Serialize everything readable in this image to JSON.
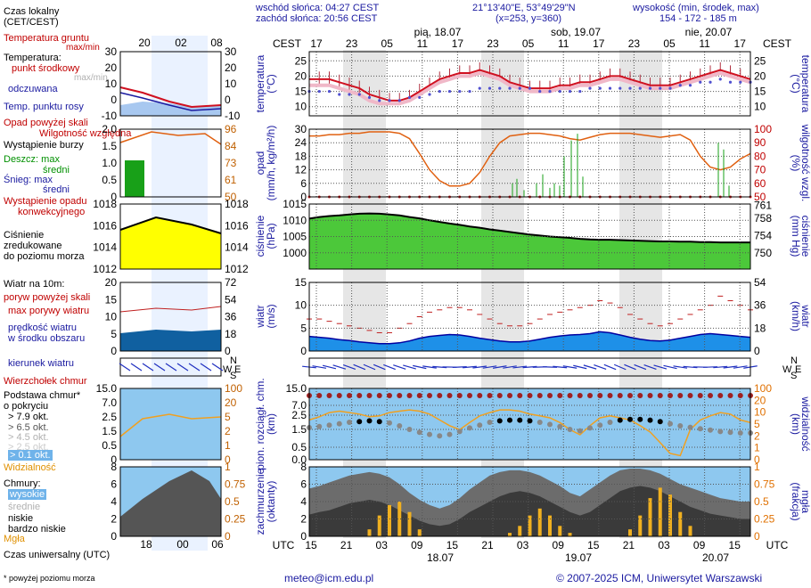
{
  "header": {
    "sunrise": "wschód słońca: 04:27 CEST",
    "sunset": "zachód słońca: 20:56 CEST",
    "coords": "21°13'40\"E, 53°49'29\"N",
    "grid": "(x=253, y=360)",
    "elev_label": "wysokość (min, środek, max)",
    "elev_values": "154 - 172 - 185 m"
  },
  "legend": {
    "local_time": "Czas lokalny",
    "local_time_sub": "(CET/CEST)",
    "soil_temp": "Temperatura gruntu",
    "soil_temp_sub": "max/min",
    "temperature": "Temperatura:",
    "center_point": "punkt środkowy",
    "maxmin": "max/min",
    "perceived": "odczuwana",
    "dew_point": "Temp. punktu rosy",
    "rain_over_scale": "Opad powyżej skali",
    "humidity": "Wilgotność względna",
    "storm": "Wystąpienie burzy",
    "rain_max": "Deszcz: max",
    "rain_mean": "średni",
    "snow_max": "Śnieg:  max",
    "snow_mean": "średni",
    "convective": "Wystąpienie opadu",
    "convective2": "konwekcyjnego",
    "pressure1": "Ciśnienie",
    "pressure2": "zredukowane",
    "pressure3": "do poziomu morza",
    "wind_at": "Wiatr na 10m:",
    "gust_over": "poryw powyżej skali",
    "gust_max": "max porywy wiatru",
    "wind_speed1": "prędkość wiatru",
    "wind_speed2": "w środku obszaru",
    "wind_dir": "kierunek wiatru",
    "cloud_top": "Wierzchołek chmur",
    "cloud_base": "Podstawa chmur*",
    "cloud_base2": "o pokryciu",
    "okt79": "> 7.9 okt.",
    "okt65": "> 6.5 okt.",
    "okt45": "> 4.5 okt.",
    "okt25": "> 2.5 okt.",
    "okt01": "> 0.1 okt.",
    "visibility": "Widzialność",
    "clouds": "Chmury:",
    "high": "wysokie",
    "mid": "średnie",
    "low": "niskie",
    "very_low": "bardzo niskie",
    "fog": "Mgła",
    "utc": "Czas uniwersalny (UTC)",
    "footnote": "* powyżej poziomu morza"
  },
  "footer": {
    "email": "meteo@icm.edu.pl",
    "copyright": "© 2007-2025 ICM, Uniwersytet Warszawski"
  },
  "axis_labels": {
    "cest": "CEST",
    "utc": "UTC",
    "temp_l": "temperatura",
    "temp_unit": "(°C)",
    "rain_l": "opad",
    "rain_unit": "(mm/h, kg/m²/h)",
    "hum_r": "wilgotność wzgl.",
    "hum_unit": "(%)",
    "pres_l": "ciśnienie",
    "pres_unit": "(hPa)",
    "pres_r": "ciśnienie",
    "pres_r_unit": "(mm Hg)",
    "wind_l": "wiatr",
    "wind_unit": "(m/s)",
    "wind_r": "wiatr",
    "wind_r_unit": "(km/h)",
    "cloud_l": "pion. rozciągł. chm.",
    "cloud_unit": "(km)",
    "vis_r": "widzialność",
    "vis_unit": "(km)",
    "cov_l": "zachmurzenie",
    "cov_unit": "(oktanty)",
    "fog_r": "mgła",
    "fog_unit": "(frakcja)",
    "compass_w": "W",
    "compass_n": "N",
    "compass_s": "S",
    "compass_e": "E"
  },
  "chart_data": {
    "type": "line",
    "top_hours": [
      "17",
      "23",
      "05",
      "11",
      "17",
      "23",
      "05",
      "11",
      "17",
      "23",
      "05",
      "11",
      "17"
    ],
    "days_top": [
      "pią, 18.07",
      "sob, 19.07",
      "nie, 20.07"
    ],
    "bottom_hours": [
      "15",
      "21",
      "03",
      "09",
      "15",
      "21",
      "03",
      "09",
      "15",
      "21",
      "03",
      "09",
      "15"
    ],
    "days_bottom": [
      "18.07",
      "19.07",
      "20.07"
    ],
    "legend_top_hours": [
      "20",
      "02",
      "08"
    ],
    "legend_bottom_hours": [
      "18",
      "00",
      "06"
    ],
    "temp_ticks": [
      10,
      15,
      20,
      25
    ],
    "temp_ylim": [
      7,
      28
    ],
    "temperature": [
      19,
      19,
      19,
      18,
      17,
      16,
      14,
      13,
      12,
      12,
      13,
      15,
      17,
      19,
      20,
      21,
      21,
      22,
      21,
      20,
      18,
      17,
      16,
      16,
      16,
      17,
      17,
      18,
      18,
      19,
      20,
      20,
      19,
      18,
      17,
      17,
      17,
      18,
      19,
      20,
      21,
      22,
      21,
      20,
      19
    ],
    "perceived": [
      17,
      17,
      17,
      16,
      15,
      14,
      12,
      11,
      11,
      11,
      12,
      14,
      16,
      18,
      19,
      20,
      20,
      21,
      20,
      19,
      17,
      16,
      15,
      15,
      15,
      16,
      16,
      17,
      17,
      18,
      19,
      19,
      18,
      17,
      16,
      16,
      16,
      17,
      18,
      19,
      20,
      21,
      20,
      19,
      18
    ],
    "dew_point": [
      15,
      15,
      15,
      14,
      14,
      14,
      13,
      12,
      12,
      12,
      13,
      13,
      14,
      15,
      15,
      15,
      15,
      16,
      16,
      16,
      16,
      16,
      16,
      15,
      15,
      15,
      15,
      15,
      16,
      16,
      16,
      16,
      16,
      16,
      16,
      16,
      16,
      17,
      17,
      18,
      18,
      19,
      18,
      18,
      18
    ],
    "rain_ticks": [
      0,
      6,
      12,
      18,
      24,
      30
    ],
    "rain_ylim": [
      0,
      30
    ],
    "humidity_ticks": [
      50,
      60,
      70,
      80,
      90,
      100
    ],
    "humidity": [
      95,
      95,
      96,
      96,
      97,
      97,
      98,
      98,
      98,
      97,
      93,
      82,
      70,
      62,
      58,
      58,
      60,
      68,
      80,
      90,
      95,
      96,
      97,
      97,
      96,
      95,
      93,
      92,
      94,
      96,
      97,
      97,
      97,
      96,
      95,
      94,
      95,
      96,
      92,
      80,
      72,
      70,
      72,
      78,
      82
    ],
    "pressure_ticks": [
      1000,
      1005,
      1010,
      1015
    ],
    "pressure_r_ticks": [
      750,
      754,
      758,
      761
    ],
    "pressure_ylim": [
      995,
      1015
    ],
    "pressure": [
      1010.5,
      1011,
      1011.3,
      1011.5,
      1011.8,
      1012,
      1012.1,
      1012,
      1011.8,
      1011.5,
      1011,
      1010.6,
      1010,
      1009.5,
      1009,
      1008.6,
      1008.1,
      1007.7,
      1007.2,
      1006.8,
      1006.4,
      1006,
      1005.6,
      1005.3,
      1005,
      1004.8,
      1004.6,
      1004.3,
      1004.1,
      1004,
      1004,
      1003.9,
      1003.8,
      1003.7,
      1003.6,
      1003.5,
      1003.5,
      1003.4,
      1003.4,
      1003.3,
      1003.3,
      1003.2,
      1003.2,
      1003.2,
      1003.2
    ],
    "wind_ticks": [
      0,
      5,
      10,
      15
    ],
    "wind_r_ticks": [
      0,
      18,
      36,
      54
    ],
    "wind_ylim": [
      0,
      15
    ],
    "wind_speed": [
      3.2,
      3.0,
      2.8,
      2.5,
      2.3,
      2.0,
      1.8,
      1.6,
      1.6,
      1.8,
      2.2,
      2.8,
      3.2,
      3.4,
      3.6,
      3.5,
      3.2,
      2.8,
      2.5,
      2.2,
      2.0,
      2.0,
      2.2,
      2.6,
      3.0,
      3.3,
      3.5,
      3.6,
      3.8,
      4.2,
      4.0,
      3.5,
      3.0,
      2.6,
      2.3,
      2.2,
      2.4,
      2.8,
      3.2,
      3.6,
      3.8,
      3.6,
      3.4,
      3.2,
      3.0
    ],
    "gusts": [
      7,
      7,
      6.5,
      6,
      5.5,
      5,
      4.5,
      4,
      4,
      5,
      6,
      7.5,
      8.5,
      9,
      9.5,
      9.5,
      9,
      8,
      7,
      6,
      5.5,
      5.5,
      6,
      7,
      8,
      8.5,
      9,
      9.5,
      10,
      11,
      10.5,
      9.5,
      8,
      7,
      6,
      5.5,
      6,
      7,
      8,
      9,
      10,
      12,
      11,
      10,
      9
    ],
    "cloud_ticks": [
      0,
      0.5,
      1.5,
      2.5,
      7,
      15
    ],
    "vis_ticks": [
      0,
      1,
      2,
      5,
      10,
      20,
      100
    ],
    "cloud_top": [
      12.5,
      12.5,
      12.6,
      12.6,
      12.7,
      12.7,
      12.7,
      12.8,
      12.8,
      12.8,
      12.8,
      12.8,
      12.8,
      12.8,
      12.8,
      12.8,
      12.8,
      12.8,
      12.8,
      12.8,
      12.8,
      12.8,
      12.8,
      12.8,
      12.8,
      12.8,
      12.8,
      12.8,
      12.8,
      12.8,
      12.8,
      12.8,
      12.8,
      12.8,
      12.8,
      12.8,
      12.8,
      12.8,
      12.8,
      12.8,
      12.8,
      12.8,
      12.8,
      12.8,
      12.8
    ],
    "visibility": [
      12,
      15,
      20,
      22,
      20,
      18,
      15,
      16,
      20,
      22,
      24,
      22,
      18,
      12,
      8,
      6,
      10,
      16,
      20,
      24,
      24,
      22,
      18,
      16,
      14,
      10,
      6,
      4,
      8,
      14,
      16,
      14,
      12,
      8,
      5,
      2,
      0.5,
      0.3,
      6,
      12,
      16,
      20,
      18,
      12,
      10
    ],
    "coverage_ticks": [
      0,
      2,
      4,
      6,
      8
    ],
    "fog_ticks": [
      0,
      0.25,
      0.5,
      0.75,
      1
    ],
    "coverage_total": [
      5.5,
      5.8,
      6.2,
      6.6,
      7.0,
      7.2,
      7.4,
      7.2,
      6.8,
      6.0,
      5.0,
      4.2,
      3.6,
      3.2,
      3.6,
      4.4,
      5.4,
      6.2,
      7.0,
      7.4,
      7.6,
      7.6,
      7.4,
      7.0,
      6.4,
      5.8,
      5.0,
      4.6,
      5.4,
      6.2,
      7.0,
      7.6,
      7.8,
      7.8,
      7.6,
      7.2,
      6.6,
      6.0,
      5.6,
      5.2,
      4.8,
      4.4,
      4.2,
      4.0,
      4.0
    ],
    "coverage_low": [
      2.5,
      2.8,
      3.0,
      3.4,
      3.8,
      4.0,
      4.2,
      4.0,
      3.6,
      3.0,
      2.4,
      1.8,
      1.4,
      1.2,
      1.4,
      2.0,
      2.8,
      3.4,
      4.0,
      4.6,
      5.0,
      5.2,
      5.0,
      4.6,
      4.0,
      3.4,
      2.8,
      2.4,
      2.8,
      3.6,
      4.4,
      5.2,
      5.6,
      5.8,
      5.6,
      5.2,
      4.6,
      4.0,
      3.4,
      3.0,
      2.6,
      2.4,
      2.2,
      2.0,
      2.0
    ],
    "fog": [
      0,
      0,
      0,
      0,
      0,
      0,
      0.1,
      0.3,
      0.45,
      0.5,
      0.35,
      0.1,
      0,
      0,
      0,
      0,
      0,
      0,
      0,
      0,
      0.05,
      0.15,
      0.3,
      0.4,
      0.3,
      0.15,
      0.05,
      0,
      0,
      0,
      0,
      0,
      0.1,
      0.3,
      0.55,
      0.7,
      0.6,
      0.35,
      0.15,
      0,
      0,
      0,
      0,
      0,
      0
    ]
  }
}
